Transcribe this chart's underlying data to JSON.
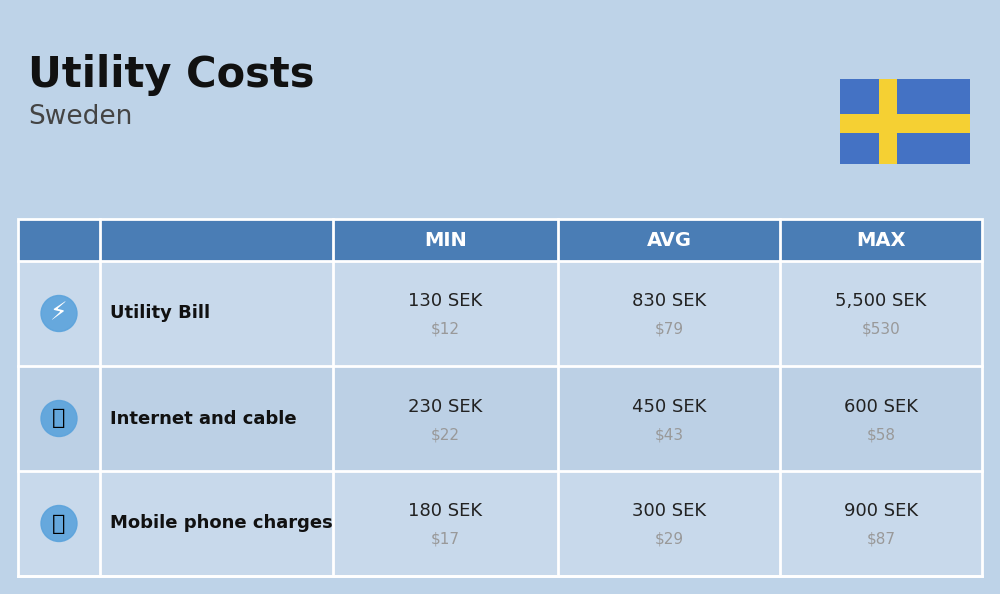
{
  "title": "Utility Costs",
  "subtitle": "Sweden",
  "background_color": "#bed3e8",
  "header_bg_color": "#4a7db5",
  "header_text_color": "#ffffff",
  "row_bg_color_odd": "#c8d9eb",
  "row_bg_color_even": "#bcd0e5",
  "usd_color": "#999999",
  "label_color": "#111111",
  "sek_color": "#222222",
  "border_color": "#ffffff",
  "flag_blue": "#4472C4",
  "flag_yellow": "#F5D033",
  "rows": [
    {
      "label": "Utility Bill",
      "min_sek": "130 SEK",
      "min_usd": "$12",
      "avg_sek": "830 SEK",
      "avg_usd": "$79",
      "max_sek": "5,500 SEK",
      "max_usd": "$530"
    },
    {
      "label": "Internet and cable",
      "min_sek": "230 SEK",
      "min_usd": "$22",
      "avg_sek": "450 SEK",
      "avg_usd": "$43",
      "max_sek": "600 SEK",
      "max_usd": "$58"
    },
    {
      "label": "Mobile phone charges",
      "min_sek": "180 SEK",
      "min_usd": "$17",
      "avg_sek": "300 SEK",
      "avg_usd": "$29",
      "max_sek": "900 SEK",
      "max_usd": "$87"
    }
  ]
}
